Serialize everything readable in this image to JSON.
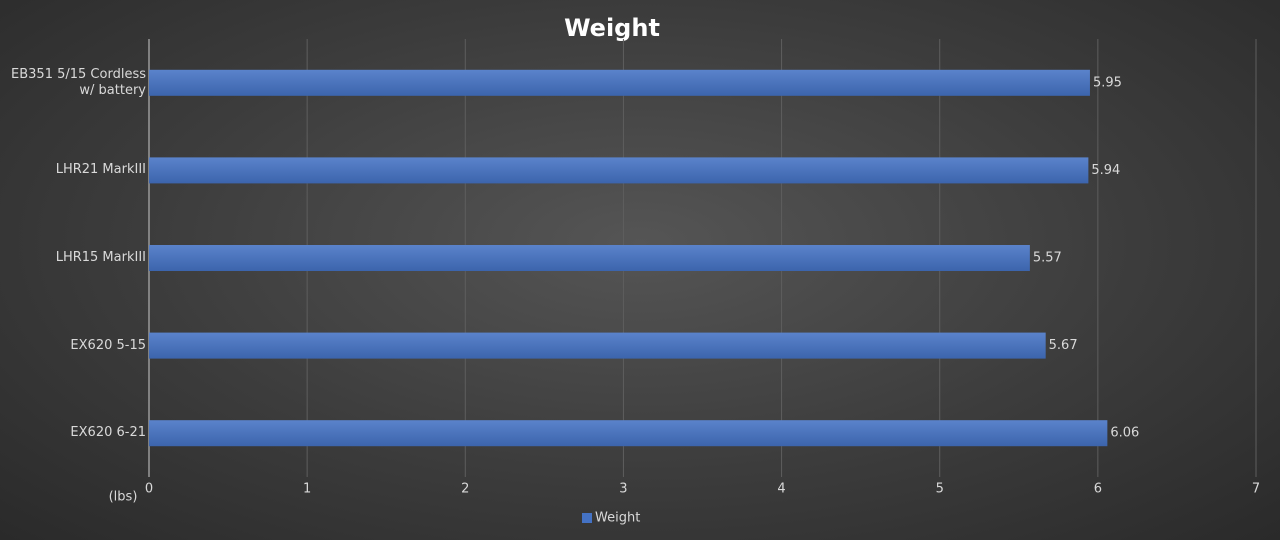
{
  "chart_data": {
    "type": "bar",
    "orientation": "horizontal",
    "title": "Weight",
    "x_label": "(lbs)",
    "categories": [
      "EB351 5/15 Cordless w/ battery",
      "LHR21 MarkIII",
      "LHR15 MarkIII",
      "EX620 5-15",
      "EX620 6-21"
    ],
    "series": [
      {
        "name": "Weight",
        "color": "#4472c4",
        "values": [
          5.95,
          5.94,
          5.57,
          5.67,
          6.06
        ]
      }
    ],
    "xlim": [
      0,
      7
    ],
    "xticks": [
      0,
      1,
      2,
      3,
      4,
      5,
      6,
      7
    ],
    "grid": true,
    "legend": "bottom"
  }
}
